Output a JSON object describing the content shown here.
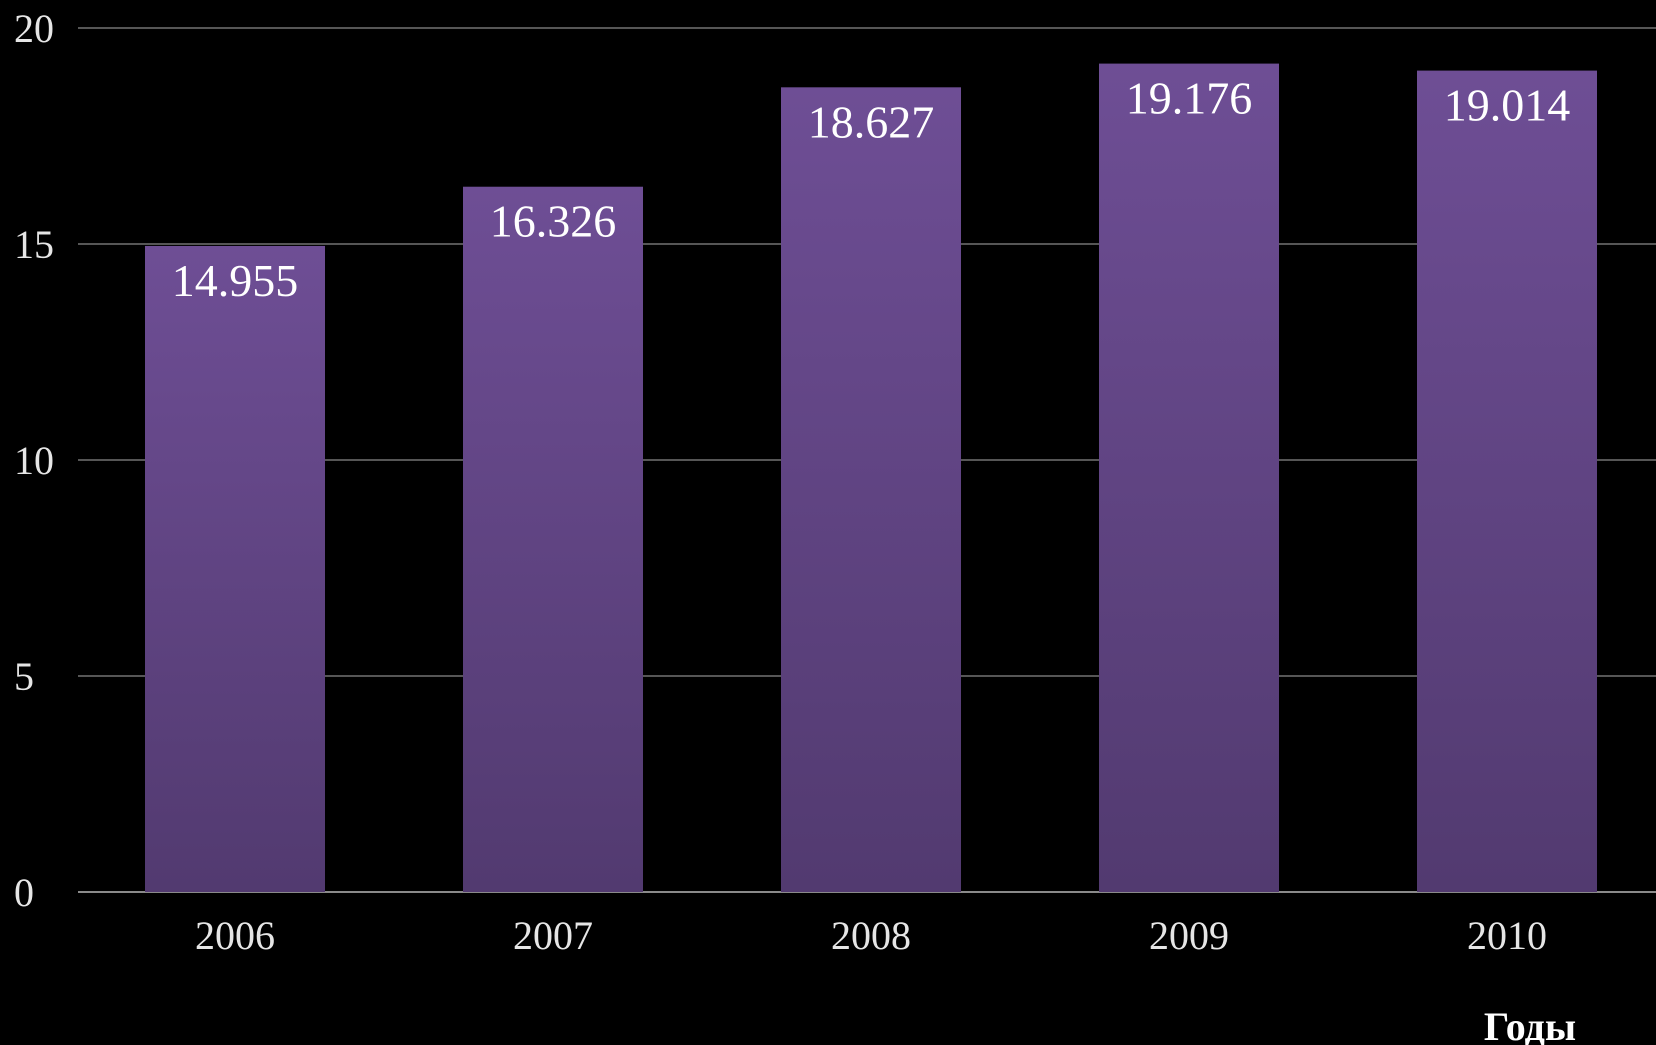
{
  "chart_data": {
    "type": "bar",
    "categories": [
      "2006",
      "2007",
      "2008",
      "2009",
      "2010"
    ],
    "values": [
      14.955,
      16.326,
      18.627,
      19.176,
      19.014
    ],
    "value_labels": [
      "14.955",
      "16.326",
      "18.627",
      "19.176",
      "19.014"
    ],
    "title": "",
    "xlabel": "Годы",
    "ylabel": "",
    "ylim": [
      0,
      20
    ],
    "yticks": [
      0,
      5,
      10,
      15,
      20
    ],
    "ytick_labels": [
      "0",
      "5",
      "10",
      "15",
      "20"
    ],
    "grid": true,
    "legend": "none",
    "colors": {
      "background": "#000000",
      "bar_top": "#6e4e95",
      "bar_bottom": "#523a70",
      "grid": "#8a8a8a",
      "text": "#ffffff"
    }
  }
}
